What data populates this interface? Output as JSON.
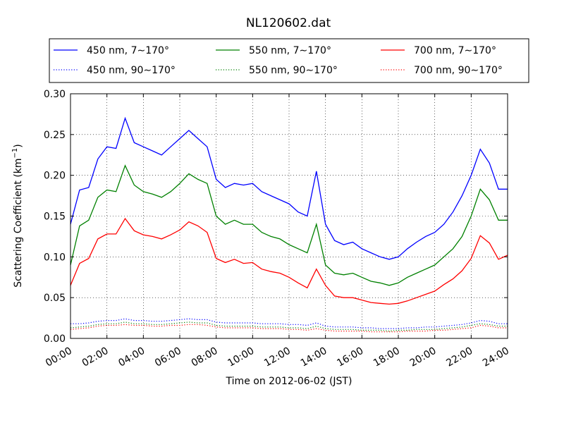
{
  "chart_data": {
    "type": "line",
    "title": "NL120602.dat",
    "xlabel": "Time on 2012-06-02 (JST)",
    "ylabel": "Scattering Coefficient (km",
    "ylabel_sup": "−1",
    "ylabel_close": ")",
    "xlim": [
      "00:00",
      "24:00"
    ],
    "ylim": [
      0.0,
      0.3
    ],
    "x_ticks": [
      "00:00",
      "02:00",
      "04:00",
      "06:00",
      "08:00",
      "10:00",
      "12:00",
      "14:00",
      "16:00",
      "18:00",
      "20:00",
      "22:00",
      "24:00"
    ],
    "y_ticks": [
      "0.00",
      "0.05",
      "0.10",
      "0.15",
      "0.20",
      "0.25",
      "0.30"
    ],
    "grid": true,
    "legend_position": "top",
    "x": [
      "00:00",
      "00:30",
      "01:00",
      "01:30",
      "02:00",
      "02:30",
      "03:00",
      "03:30",
      "04:00",
      "04:30",
      "05:00",
      "05:30",
      "06:00",
      "06:30",
      "07:00",
      "07:30",
      "08:00",
      "08:30",
      "09:00",
      "09:30",
      "10:00",
      "10:30",
      "11:00",
      "11:30",
      "12:00",
      "12:30",
      "13:00",
      "13:30",
      "14:00",
      "14:30",
      "15:00",
      "15:30",
      "16:00",
      "16:30",
      "17:00",
      "17:30",
      "18:00",
      "18:30",
      "19:00",
      "19:30",
      "20:00",
      "20:30",
      "21:00",
      "21:30",
      "22:00",
      "22:30",
      "23:00",
      "23:30",
      "24:00"
    ],
    "series": [
      {
        "name": "450 nm, 7∼170°",
        "color": "#0000ff",
        "style": "solid",
        "values": [
          0.14,
          0.182,
          0.185,
          0.22,
          0.235,
          0.233,
          0.27,
          0.24,
          0.235,
          0.23,
          0.225,
          0.235,
          0.245,
          0.255,
          0.245,
          0.235,
          0.195,
          0.185,
          0.19,
          0.188,
          0.19,
          0.18,
          0.175,
          0.17,
          0.165,
          0.155,
          0.15,
          0.205,
          0.14,
          0.12,
          0.115,
          0.118,
          0.11,
          0.105,
          0.1,
          0.097,
          0.1,
          0.11,
          0.118,
          0.125,
          0.13,
          0.14,
          0.155,
          0.175,
          0.2,
          0.232,
          0.215,
          0.183,
          0.183
        ]
      },
      {
        "name": "550 nm, 7∼170°",
        "color": "#008000",
        "style": "solid",
        "values": [
          0.09,
          0.138,
          0.145,
          0.173,
          0.182,
          0.18,
          0.212,
          0.188,
          0.18,
          0.177,
          0.173,
          0.18,
          0.19,
          0.202,
          0.195,
          0.19,
          0.15,
          0.14,
          0.145,
          0.14,
          0.14,
          0.13,
          0.125,
          0.122,
          0.115,
          0.11,
          0.105,
          0.14,
          0.09,
          0.08,
          0.078,
          0.08,
          0.075,
          0.07,
          0.068,
          0.065,
          0.068,
          0.075,
          0.08,
          0.085,
          0.09,
          0.1,
          0.11,
          0.125,
          0.15,
          0.183,
          0.17,
          0.145,
          0.145
        ]
      },
      {
        "name": "700 nm, 7∼170°",
        "color": "#ff0000",
        "style": "solid",
        "values": [
          0.065,
          0.092,
          0.098,
          0.122,
          0.128,
          0.128,
          0.147,
          0.132,
          0.127,
          0.125,
          0.122,
          0.127,
          0.133,
          0.143,
          0.138,
          0.13,
          0.098,
          0.093,
          0.097,
          0.092,
          0.093,
          0.085,
          0.082,
          0.08,
          0.075,
          0.068,
          0.062,
          0.085,
          0.065,
          0.052,
          0.05,
          0.05,
          0.047,
          0.044,
          0.043,
          0.042,
          0.043,
          0.046,
          0.05,
          0.054,
          0.058,
          0.066,
          0.073,
          0.083,
          0.098,
          0.126,
          0.117,
          0.097,
          0.102
        ]
      },
      {
        "name": "450 nm, 90∼170°",
        "color": "#0000ff",
        "style": "dotted",
        "values": [
          0.018,
          0.018,
          0.019,
          0.021,
          0.022,
          0.022,
          0.024,
          0.022,
          0.022,
          0.021,
          0.021,
          0.022,
          0.023,
          0.024,
          0.023,
          0.023,
          0.02,
          0.019,
          0.019,
          0.019,
          0.019,
          0.018,
          0.018,
          0.018,
          0.017,
          0.017,
          0.016,
          0.019,
          0.015,
          0.014,
          0.014,
          0.014,
          0.013,
          0.013,
          0.012,
          0.012,
          0.012,
          0.013,
          0.013,
          0.014,
          0.014,
          0.015,
          0.016,
          0.017,
          0.019,
          0.022,
          0.021,
          0.018,
          0.018
        ]
      },
      {
        "name": "550 nm, 90∼170°",
        "color": "#008000",
        "style": "dotted",
        "values": [
          0.013,
          0.014,
          0.015,
          0.017,
          0.018,
          0.018,
          0.02,
          0.018,
          0.018,
          0.017,
          0.017,
          0.018,
          0.019,
          0.02,
          0.019,
          0.019,
          0.016,
          0.015,
          0.015,
          0.015,
          0.015,
          0.014,
          0.014,
          0.014,
          0.013,
          0.013,
          0.012,
          0.015,
          0.012,
          0.011,
          0.011,
          0.011,
          0.01,
          0.01,
          0.01,
          0.009,
          0.01,
          0.01,
          0.011,
          0.011,
          0.011,
          0.012,
          0.013,
          0.014,
          0.016,
          0.018,
          0.017,
          0.015,
          0.015
        ]
      },
      {
        "name": "700 nm, 90∼170°",
        "color": "#ff0000",
        "style": "dotted",
        "values": [
          0.011,
          0.012,
          0.013,
          0.015,
          0.016,
          0.016,
          0.017,
          0.016,
          0.016,
          0.015,
          0.015,
          0.016,
          0.016,
          0.017,
          0.017,
          0.016,
          0.014,
          0.013,
          0.013,
          0.013,
          0.013,
          0.012,
          0.012,
          0.012,
          0.011,
          0.011,
          0.01,
          0.012,
          0.01,
          0.009,
          0.009,
          0.009,
          0.009,
          0.008,
          0.008,
          0.008,
          0.008,
          0.009,
          0.009,
          0.009,
          0.01,
          0.01,
          0.011,
          0.012,
          0.013,
          0.016,
          0.015,
          0.013,
          0.013
        ]
      }
    ]
  }
}
